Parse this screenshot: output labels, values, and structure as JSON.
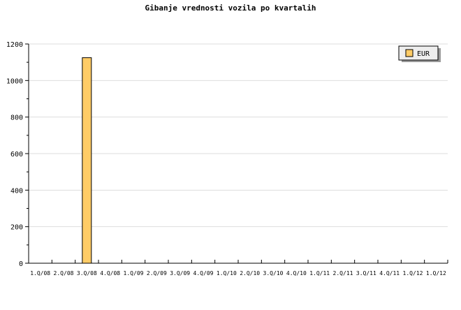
{
  "chart_data": {
    "type": "bar",
    "title": "Gibanje vrednosti vozila po kvartalih",
    "categories": [
      "1.Q/08",
      "2.Q/08",
      "3.Q/08",
      "4.Q/08",
      "1.Q/09",
      "2.Q/09",
      "3.Q/09",
      "4.Q/09",
      "1.Q/10",
      "2.Q/10",
      "3.Q/10",
      "4.Q/10",
      "1.Q/11",
      "2.Q/11",
      "3.Q/11",
      "4.Q/11",
      "1.Q/12",
      "1.Q/12"
    ],
    "series": [
      {
        "name": "EUR",
        "values": [
          0,
          0,
          1125,
          0,
          0,
          0,
          0,
          0,
          0,
          0,
          0,
          0,
          0,
          0,
          0,
          0,
          0,
          0
        ],
        "color": "#ffcc66"
      }
    ],
    "ylim": [
      0,
      1200
    ],
    "yticks": [
      0,
      200,
      400,
      600,
      800,
      1000,
      1200
    ],
    "grid": true,
    "legend": "top-right"
  }
}
